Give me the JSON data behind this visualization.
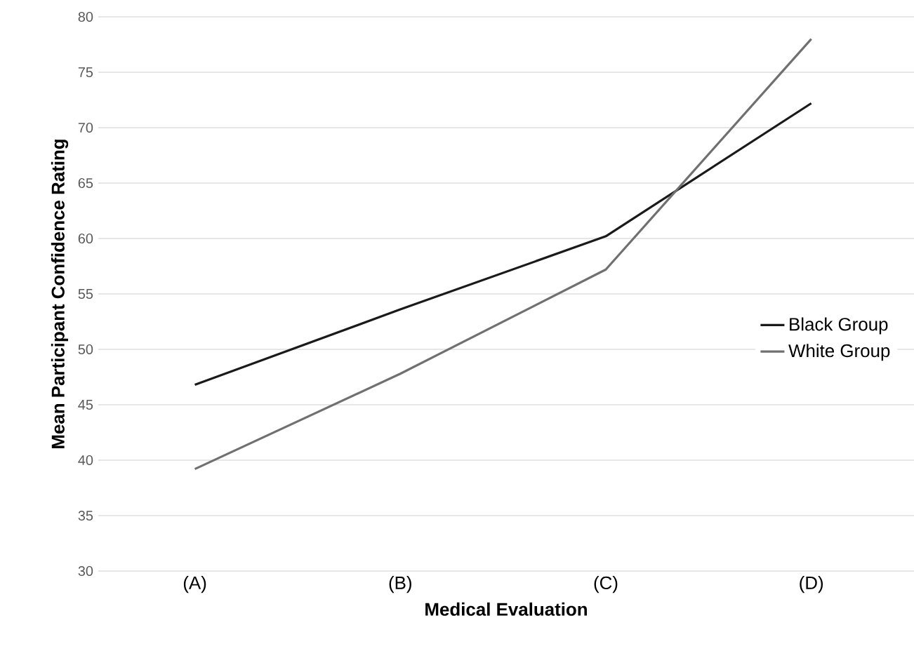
{
  "chart_data": {
    "type": "line",
    "xlabel": "Medical Evaluation",
    "ylabel": "Mean Participant Confidence Rating",
    "categories": [
      "(A)",
      "(B)",
      "(C)",
      "(D)"
    ],
    "series": [
      {
        "name": "Black Group",
        "color": "#1a1a1a",
        "values": [
          46.8,
          53.6,
          60.2,
          72.2
        ]
      },
      {
        "name": "White Group",
        "color": "#707070",
        "values": [
          39.2,
          47.8,
          57.2,
          78.0
        ]
      }
    ],
    "ylim": [
      30,
      80
    ],
    "yticks": [
      30,
      35,
      40,
      45,
      50,
      55,
      60,
      65,
      70,
      75,
      80
    ],
    "grid": "y",
    "legend": "right",
    "marker": "none",
    "line_style": "solid"
  }
}
